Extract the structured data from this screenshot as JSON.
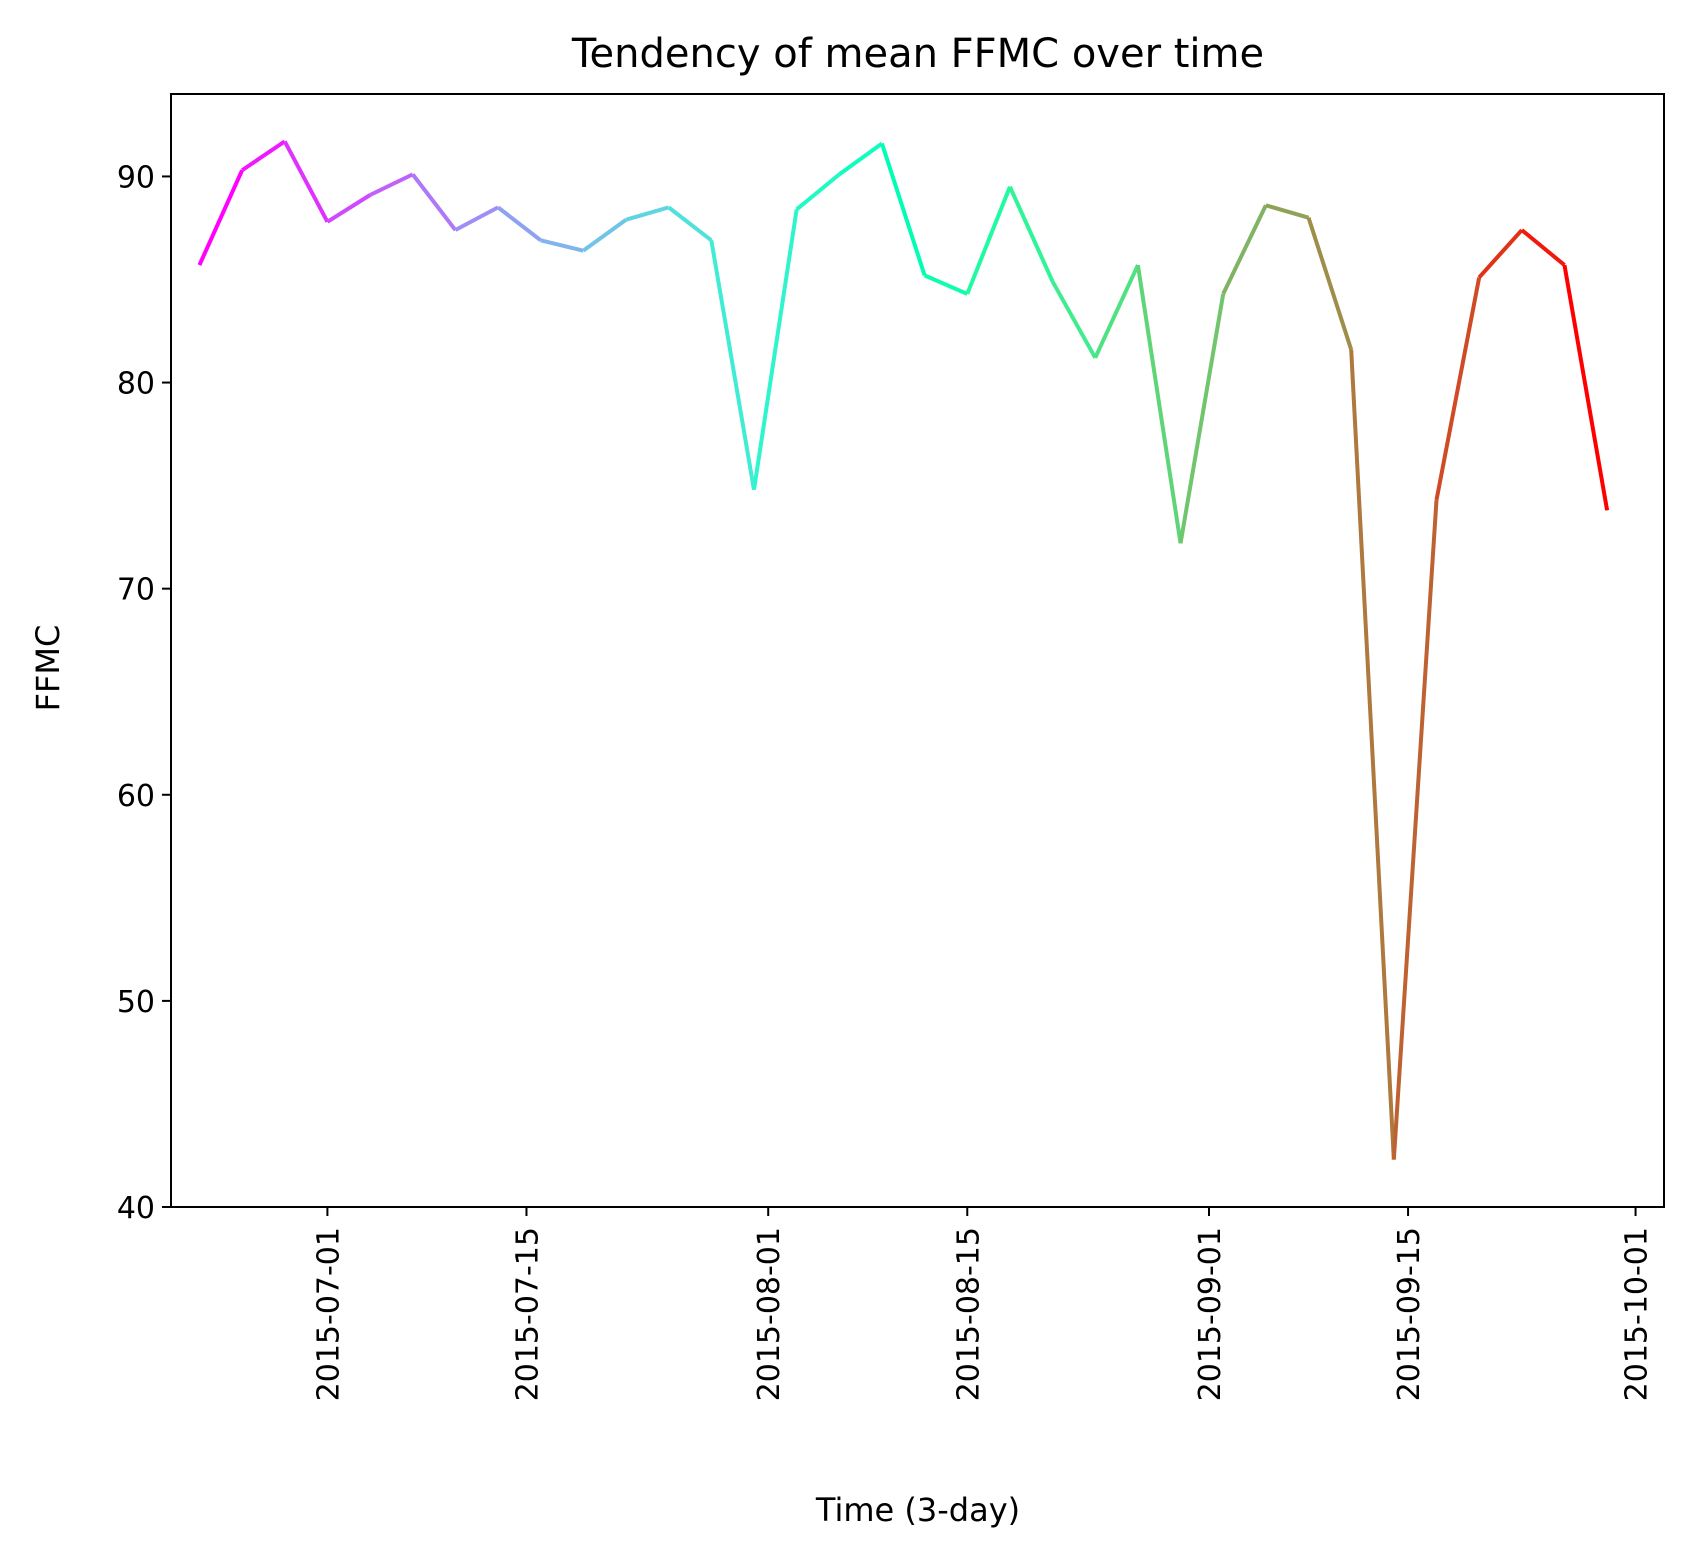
{
  "chart_data": {
    "type": "line",
    "title": "Tendency of mean FFMC over time",
    "xlabel": "Time (3-day)",
    "ylabel": "FFMC",
    "xlim": [
      "2015-06-20",
      "2015-10-03"
    ],
    "ylim": [
      40,
      94
    ],
    "x_ticks": [
      "2015-07-01",
      "2015-07-15",
      "2015-08-01",
      "2015-08-15",
      "2015-09-01",
      "2015-09-15",
      "2015-10-01"
    ],
    "y_ticks": [
      40,
      50,
      60,
      70,
      80,
      90
    ],
    "grid": false,
    "colormap": "rainbow",
    "color_start": "#8000ff",
    "color_end": "#ff0000",
    "series": [
      {
        "x": [
          "2015-06-22",
          "2015-06-25",
          "2015-06-28",
          "2015-07-01",
          "2015-07-04",
          "2015-07-07",
          "2015-07-10",
          "2015-07-13",
          "2015-07-16",
          "2015-07-19",
          "2015-07-22",
          "2015-07-25",
          "2015-07-28",
          "2015-07-31",
          "2015-08-03",
          "2015-08-06",
          "2015-08-09",
          "2015-08-12",
          "2015-08-15",
          "2015-08-18",
          "2015-08-21",
          "2015-08-24",
          "2015-08-27",
          "2015-08-30",
          "2015-09-02",
          "2015-09-05",
          "2015-09-08",
          "2015-09-11",
          "2015-09-14",
          "2015-09-17",
          "2015-09-20",
          "2015-09-23",
          "2015-09-26",
          "2015-09-29"
        ],
        "y": [
          85.7,
          90.3,
          91.7,
          87.8,
          89.1,
          90.1,
          87.4,
          88.5,
          86.9,
          86.4,
          87.9,
          88.5,
          86.9,
          74.8,
          88.4,
          90.1,
          91.6,
          85.2,
          84.3,
          89.5,
          84.9,
          81.2,
          85.7,
          72.2,
          84.3,
          88.6,
          88.0,
          81.6,
          42.3,
          74.3,
          85.1,
          87.4,
          85.7,
          73.8
        ]
      }
    ]
  }
}
